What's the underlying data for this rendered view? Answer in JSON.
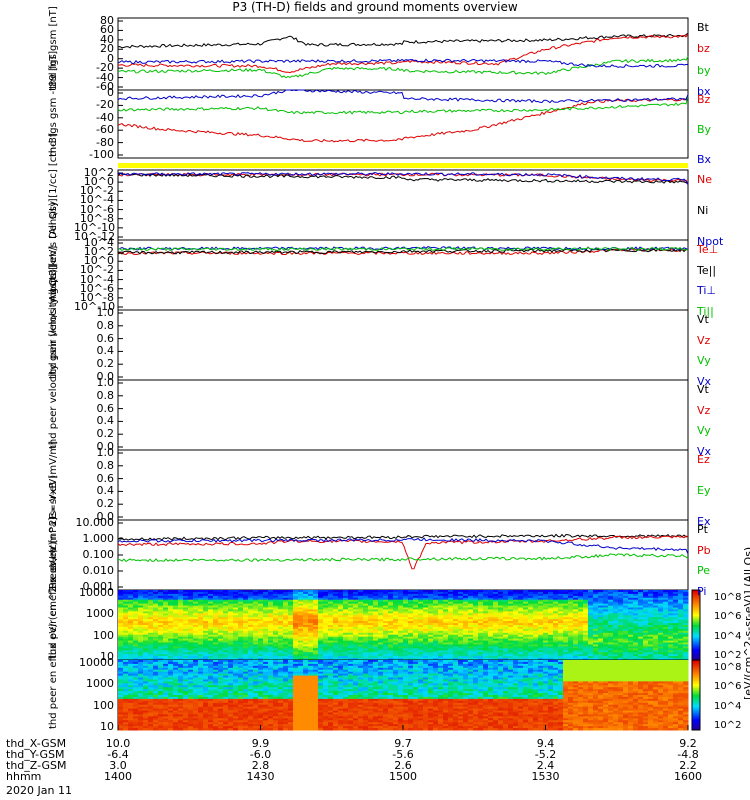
{
  "title": "P3 (TH-D) fields and ground moments overview",
  "date": "2020 Jan 11",
  "chart_data": [
    {
      "type": "line",
      "name": "fgs_gsm",
      "ylabel": [
        "thd",
        "fgs",
        "gsm",
        "[nT]"
      ],
      "ylim": [
        -60,
        90
      ],
      "yticks": [
        "80",
        "60",
        "40",
        "20",
        "0",
        "-20",
        "-40",
        "-60"
      ],
      "series": [
        {
          "name": "Bt",
          "color": "#000000",
          "x": [
            1400,
            1430,
            1436,
            1440,
            1500,
            1530,
            1545,
            1600
          ],
          "values": [
            30,
            36,
            52,
            34,
            40,
            44,
            52,
            57
          ]
        },
        {
          "name": "bz",
          "color": "#e00000",
          "x": [
            1400,
            1430,
            1436,
            1445,
            1500,
            1520,
            1530,
            1545,
            1600
          ],
          "values": [
            -8,
            -10,
            -22,
            -5,
            0,
            -5,
            25,
            50,
            56
          ]
        },
        {
          "name": "by",
          "color": "#00c000",
          "x": [
            1400,
            1430,
            1436,
            1445,
            1500,
            1530,
            1545,
            1600
          ],
          "values": [
            -22,
            -18,
            -35,
            -15,
            -20,
            -25,
            0,
            8
          ]
        },
        {
          "name": "bx",
          "color": "#0000cc",
          "x": [
            1400,
            1430,
            1500,
            1530,
            1540,
            1600
          ],
          "values": [
            -2,
            0,
            2,
            0,
            -10,
            -8
          ]
        }
      ]
    },
    {
      "type": "line",
      "name": "fgs_gsm_minus_t89",
      "ylabel": [
        "thd",
        "fgs",
        "gsm",
        "-t89",
        "[nT]"
      ],
      "ylim": [
        -110,
        10
      ],
      "yticks": [
        "0",
        "-20",
        "-40",
        "-60",
        "-80",
        "-100"
      ],
      "series": [
        {
          "name": "Bz",
          "color": "#e00000",
          "x": [
            1400,
            1410,
            1430,
            1440,
            1500,
            1515,
            1530,
            1540,
            1600
          ],
          "values": [
            -50,
            -60,
            -70,
            -80,
            -75,
            -60,
            -30,
            -10,
            0
          ]
        },
        {
          "name": "By",
          "color": "#00c000",
          "x": [
            1400,
            1430,
            1436,
            1500,
            1530,
            1600
          ],
          "values": [
            -25,
            -22,
            -30,
            -28,
            -25,
            0
          ]
        },
        {
          "name": "Bx",
          "color": "#0000cc",
          "x": [
            1400,
            1430,
            1436,
            1500,
            1530,
            1600
          ],
          "values": [
            -5,
            0,
            10,
            -5,
            -10,
            0
          ]
        }
      ]
    },
    {
      "type": "line",
      "name": "density",
      "ylabel": [
        "Density",
        "[1/cc]",
        "[cm-3]"
      ],
      "scale": "log",
      "ylim": [
        -13,
        2
      ],
      "yticks": [
        "10^2",
        "10^0",
        "10^-2",
        "10^-4",
        "10^-6",
        "10^-8",
        "10^-10",
        "10^-12"
      ],
      "series": [
        {
          "name": "Ne",
          "color": "#e00000",
          "x": [
            1400,
            1500,
            1530,
            1545,
            1600
          ],
          "values": [
            1.0,
            1.05,
            0.9,
            0.0,
            -1.0
          ]
        },
        {
          "name": "Ni",
          "color": "#000000",
          "x": [
            1400,
            1600
          ],
          "values": [
            1.0,
            -1.0
          ]
        },
        {
          "name": "Npot",
          "color": "#0000cc",
          "x": [
            1400,
            1500,
            1530,
            1545,
            1600
          ],
          "values": [
            1.1,
            1.2,
            1.0,
            0.2,
            -1.0
          ]
        }
      ]
    },
    {
      "type": "line",
      "name": "temperature",
      "ylabel": [
        "moqt3",
        "[eV]"
      ],
      "scale": "log",
      "ylim": [
        -11,
        5
      ],
      "yticks": [
        "10^4",
        "10^2",
        "10^0",
        "10^-2",
        "10^-4",
        "10^-6",
        "10^-8",
        "10^-10"
      ],
      "series": [
        {
          "name": "Te⊥",
          "color": "#e00000",
          "x": [
            1400,
            1530,
            1545,
            1600
          ],
          "values": [
            2.0,
            2.0,
            2.7,
            2.8
          ]
        },
        {
          "name": "Te||",
          "color": "#000000",
          "x": [
            1400,
            1600
          ],
          "values": [
            2.1,
            2.8
          ]
        },
        {
          "name": "Ti⊥",
          "color": "#0000cc",
          "x": [
            1400,
            1500,
            1530,
            1600
          ],
          "values": [
            3.0,
            3.2,
            3.1,
            3.0
          ]
        },
        {
          "name": "Ti||",
          "color": "#00c000",
          "x": [
            1400,
            1600
          ],
          "values": [
            2.9,
            3.0
          ]
        }
      ]
    },
    {
      "type": "line",
      "name": "peir_velocity",
      "ylabel": [
        "thd",
        "peir",
        "velocity",
        "gsm",
        "[km/s (All Qs)]"
      ],
      "ylim": [
        0.0,
        1.0
      ],
      "yticks": [
        "1.0",
        "0.8",
        "0.6",
        "0.4",
        "0.2",
        "0.0"
      ],
      "series": [
        {
          "name": "Vt",
          "color": "#000000",
          "values": []
        },
        {
          "name": "Vz",
          "color": "#e00000",
          "values": []
        },
        {
          "name": "Vy",
          "color": "#00c000",
          "values": []
        },
        {
          "name": "Vx",
          "color": "#0000cc",
          "values": []
        }
      ]
    },
    {
      "type": "line",
      "name": "peer_velocity",
      "ylabel": [
        "thd",
        "peer",
        "velocity",
        "gsm",
        "[km/s (All Qs)]"
      ],
      "ylim": [
        0.0,
        1.0
      ],
      "yticks": [
        "1.0",
        "0.8",
        "0.6",
        "0.4",
        "0.2",
        "0.0"
      ],
      "series": [
        {
          "name": "Vt",
          "color": "#000000",
          "values": []
        },
        {
          "name": "Vz",
          "color": "#e00000",
          "values": []
        },
        {
          "name": "Vy",
          "color": "#00c000",
          "values": []
        },
        {
          "name": "Vx",
          "color": "#0000cc",
          "values": []
        }
      ]
    },
    {
      "type": "line",
      "name": "efield",
      "ylabel": [
        "E=-VxB",
        "[mV/m]"
      ],
      "ylim": [
        0.0,
        1.0
      ],
      "yticks": [
        "1.0",
        "0.8",
        "0.6",
        "0.4",
        "0.2",
        "0.0"
      ],
      "series": [
        {
          "name": "Ez",
          "color": "#e00000",
          "values": []
        },
        {
          "name": "Ey",
          "color": "#00c000",
          "values": []
        },
        {
          "name": "Ex",
          "color": "#0000cc",
          "values": []
        }
      ]
    },
    {
      "type": "line",
      "name": "pressure",
      "ylabel": [
        "Pressure",
        "[nPa]"
      ],
      "scale": "log",
      "ylim": [
        -3,
        1
      ],
      "yticks": [
        "10.000",
        "1.000",
        "0.100",
        "0.010",
        "0.001"
      ],
      "series": [
        {
          "name": "Pt",
          "color": "#000000",
          "x": [
            1400,
            1436,
            1500,
            1530,
            1600
          ],
          "values": [
            -0.1,
            0.0,
            0.05,
            0.1,
            0.05
          ]
        },
        {
          "name": "Pb",
          "color": "#e00000",
          "x": [
            1400,
            1430,
            1436,
            1500,
            1502,
            1505,
            1530,
            1545,
            1600
          ],
          "values": [
            -0.4,
            -0.35,
            -0.2,
            -0.3,
            -1.9,
            -0.3,
            -0.2,
            0.0,
            0.05
          ]
        },
        {
          "name": "Pe",
          "color": "#00c000",
          "x": [
            1400,
            1530,
            1545,
            1600
          ],
          "values": [
            -1.3,
            -1.2,
            -1.0,
            -1.2
          ]
        },
        {
          "name": "Pi",
          "color": "#0000cc",
          "x": [
            1400,
            1500,
            1530,
            1545,
            1600
          ],
          "values": [
            -0.2,
            -0.1,
            -0.2,
            -0.6,
            -1.0
          ]
        }
      ]
    },
    {
      "type": "heatmap",
      "name": "peir_en_eflux",
      "ylabel": [
        "thd",
        "peir",
        "en",
        "eflux",
        "eV/",
        "(cm^2-s-",
        "sr-eV)"
      ],
      "scale": "log",
      "yticks": [
        "10000",
        "1000",
        "100",
        "10"
      ],
      "colorbar_ticks": [
        "10^8",
        "10^6",
        "10^4",
        "10^2"
      ]
    },
    {
      "type": "heatmap",
      "name": "peer_en_eflux",
      "ylabel": [
        "thd",
        "peer",
        "en",
        "eflux",
        "eV/",
        "(cm^2-s-",
        "sr-eV)"
      ],
      "scale": "log",
      "yticks": [
        "10000",
        "1000",
        "100",
        "10"
      ],
      "colorbar_ticks": [
        "10^8",
        "10^6",
        "10^4",
        "10^2"
      ]
    }
  ],
  "colorbar_title": "[eV/(cm^2-s-sr-eV)] (All Qs)",
  "xaxis": {
    "rows": [
      "thd_X-GSM",
      "thd_Y-GSM",
      "thd_Z-GSM",
      "hhmm"
    ],
    "ticks": [
      [
        "10.0",
        "-6.4",
        "3.0",
        "1400"
      ],
      [
        "9.9",
        "-6.0",
        "2.8",
        "1430"
      ],
      [
        "9.7",
        "-5.6",
        "2.6",
        "1500"
      ],
      [
        "9.4",
        "-5.2",
        "2.4",
        "1530"
      ],
      [
        "9.2",
        "-4.8",
        "2.2",
        "1600"
      ]
    ]
  }
}
